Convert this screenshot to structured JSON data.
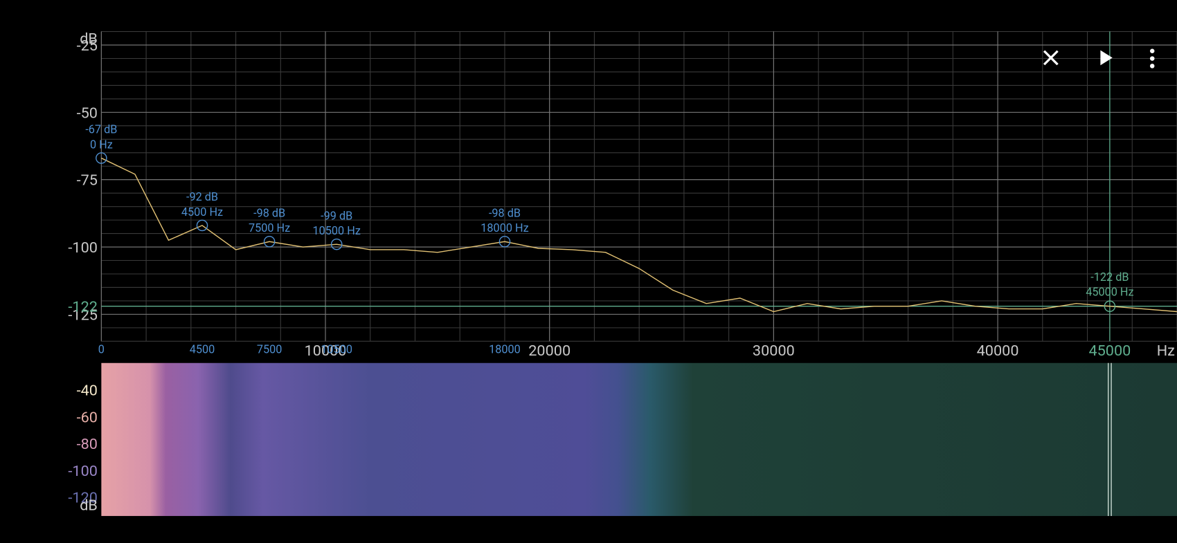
{
  "chart_data": {
    "type": "line",
    "x": [
      0,
      1500,
      3000,
      4500,
      6000,
      7500,
      9000,
      10500,
      12000,
      13500,
      15000,
      16500,
      18000,
      19500,
      21000,
      22500,
      24000,
      25500,
      27000,
      28500,
      30000,
      31500,
      33000,
      34500,
      36000,
      37500,
      39000,
      40500,
      42000,
      43500,
      45000,
      46500,
      48000
    ],
    "series": [
      {
        "color": "#e3c274",
        "values": [
          -67,
          -73,
          -97.5,
          -92,
          -101,
          -98,
          -100,
          -99,
          -101,
          -101,
          -102,
          -100,
          -98,
          -100.5,
          -101,
          -102,
          -108,
          -116,
          -121,
          -119,
          -124,
          -121,
          -123,
          -122,
          -122,
          -120,
          -122,
          -123,
          -123,
          -121,
          -122,
          -123,
          -124
        ]
      }
    ],
    "xlim": [
      0,
      48000
    ],
    "ylim": [
      -135,
      -20
    ],
    "xticks": [
      10000,
      20000,
      30000,
      40000
    ],
    "yticks": [
      -25,
      -50,
      -75,
      -100,
      -125
    ],
    "xgrid": [
      0,
      2000,
      4000,
      6000,
      8000,
      10000,
      12000,
      14000,
      16000,
      18000,
      20000,
      22000,
      24000,
      26000,
      28000,
      30000,
      32000,
      34000,
      36000,
      38000,
      40000,
      42000,
      44000,
      46000,
      48000
    ],
    "ygrid": [
      -135,
      -130,
      -125,
      -120,
      -115,
      -110,
      -105,
      -100,
      -95,
      -90,
      -85,
      -80,
      -75,
      -70,
      -65,
      -60,
      -55,
      -50,
      -45,
      -40,
      -35,
      -30,
      -25,
      -20
    ],
    "grid": true,
    "x_unit": "Hz",
    "y_unit": "dB",
    "peaks": {
      "color": "#4f8fd0",
      "x": [
        0,
        4500,
        7500,
        10500,
        18000
      ],
      "values": [
        -67,
        -92,
        -98,
        -99,
        -98
      ],
      "value_labels": [
        "-67 dB",
        "-92 dB",
        "-98 dB",
        "-99 dB",
        "-98 dB"
      ],
      "x_labels": [
        "0 Hz",
        "4500 Hz",
        "7500 Hz",
        "10500 Hz",
        "18000 Hz"
      ]
    },
    "cursor": {
      "color": "#5fae8e",
      "x": 45000,
      "value": -122,
      "value_label": "-122 dB",
      "x_label": "45000 Hz"
    }
  },
  "spectrogram": {
    "ylim": [
      -134,
      -20
    ],
    "yticks": [
      -40,
      -60,
      -80,
      -100,
      -120
    ],
    "ytick_colors": [
      "#f2e6c8",
      "#e8b0a8",
      "#d79ab8",
      "#9a86c8",
      "#6a70b0"
    ],
    "y_unit": "dB"
  }
}
